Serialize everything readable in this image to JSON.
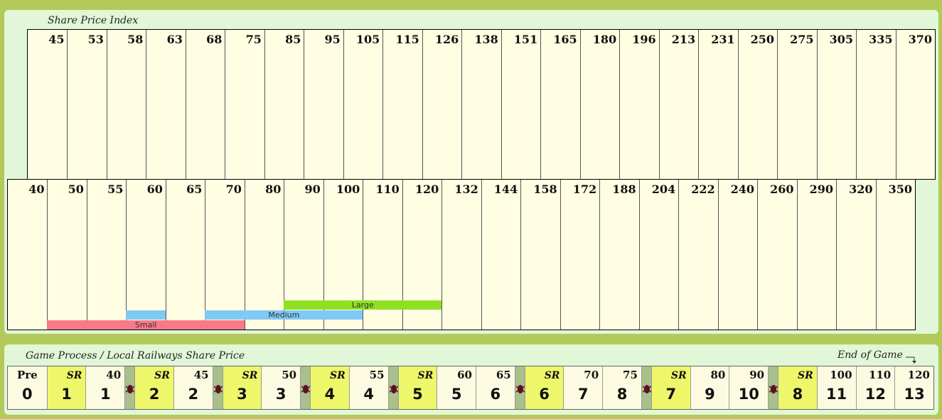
{
  "share_index": {
    "title": "Share Price Index",
    "upper_row": [
      45,
      53,
      58,
      63,
      68,
      75,
      85,
      95,
      105,
      115,
      126,
      138,
      151,
      165,
      180,
      196,
      213,
      231,
      250,
      275,
      305,
      335,
      370
    ],
    "lower_row": [
      40,
      50,
      55,
      60,
      65,
      70,
      80,
      90,
      100,
      110,
      120,
      132,
      144,
      158,
      172,
      188,
      204,
      222,
      240,
      260,
      290,
      320,
      350
    ],
    "bands": [
      {
        "label": "Small",
        "color": "#f87a89",
        "from_col": 1,
        "to_col": 6
      },
      {
        "label": "",
        "color": "#7fc9f4",
        "from_col": 3,
        "to_col": 4
      },
      {
        "label": "Medium",
        "color": "#7fc9f4",
        "from_col": 5,
        "to_col": 9
      },
      {
        "label": "Large",
        "color": "#8fe022",
        "from_col": 7,
        "to_col": 11
      }
    ]
  },
  "game_process": {
    "title": "Game Process  /  Local Railways Share Price",
    "end_label": "End of Game",
    "steps": [
      {
        "top": "Pre",
        "num": "0",
        "kind": "pre"
      },
      {
        "top": "SR",
        "num": "1",
        "kind": "sr"
      },
      {
        "top": "40",
        "num": "1",
        "kind": "op"
      },
      {
        "kind": "sep"
      },
      {
        "top": "SR",
        "num": "2",
        "kind": "sr"
      },
      {
        "top": "45",
        "num": "2",
        "kind": "op"
      },
      {
        "kind": "sep"
      },
      {
        "top": "SR",
        "num": "3",
        "kind": "sr"
      },
      {
        "top": "50",
        "num": "3",
        "kind": "op"
      },
      {
        "kind": "sep"
      },
      {
        "top": "SR",
        "num": "4",
        "kind": "sr"
      },
      {
        "top": "55",
        "num": "4",
        "kind": "op"
      },
      {
        "kind": "sep"
      },
      {
        "top": "SR",
        "num": "5",
        "kind": "sr"
      },
      {
        "top": "60",
        "num": "5",
        "kind": "op"
      },
      {
        "top": "65",
        "num": "6",
        "kind": "op"
      },
      {
        "kind": "sep"
      },
      {
        "top": "SR",
        "num": "6",
        "kind": "sr"
      },
      {
        "top": "70",
        "num": "7",
        "kind": "op"
      },
      {
        "top": "75",
        "num": "8",
        "kind": "op"
      },
      {
        "kind": "sep"
      },
      {
        "top": "SR",
        "num": "7",
        "kind": "sr"
      },
      {
        "top": "80",
        "num": "9",
        "kind": "op"
      },
      {
        "top": "90",
        "num": "10",
        "kind": "op"
      },
      {
        "kind": "sep"
      },
      {
        "top": "SR",
        "num": "8",
        "kind": "sr"
      },
      {
        "top": "100",
        "num": "11",
        "kind": "op"
      },
      {
        "top": "110",
        "num": "12",
        "kind": "op"
      },
      {
        "top": "120",
        "num": "13",
        "kind": "op"
      }
    ],
    "colors": {
      "sr": "#eef76a",
      "op": "#fcfbe2",
      "sep": "#a9c08c"
    }
  }
}
